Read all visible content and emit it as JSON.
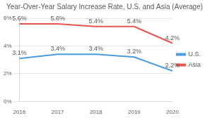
{
  "chart_data": {
    "type": "line",
    "title": "Year-Over-Year Salary Increase Rate, U.S. and Asia (Average)",
    "categories": [
      "2016",
      "2017",
      "2018",
      "2019",
      "2020"
    ],
    "series": [
      {
        "name": "U.S.",
        "color": "#4a9be0",
        "values": [
          3.1,
          3.4,
          3.4,
          3.2,
          2.2
        ],
        "value_labels": [
          "3.1%",
          "3.4%",
          "3.4%",
          "3.2%",
          "2.2%"
        ]
      },
      {
        "name": "Asia",
        "color": "#e8554e",
        "values": [
          5.6,
          5.6,
          5.4,
          5.4,
          4.2
        ],
        "value_labels": [
          "5.6%",
          "5.6%",
          "5.4%",
          "5.4%",
          "4.2%"
        ]
      }
    ],
    "ylim": [
      0,
      6
    ],
    "yticks": [
      {
        "value": 0,
        "label": "0%"
      },
      {
        "value": 2,
        "label": "2%"
      },
      {
        "value": 4,
        "label": "4%"
      },
      {
        "value": 6,
        "label": "6%"
      }
    ],
    "grid": true,
    "legend": "right",
    "data_labels": true
  }
}
